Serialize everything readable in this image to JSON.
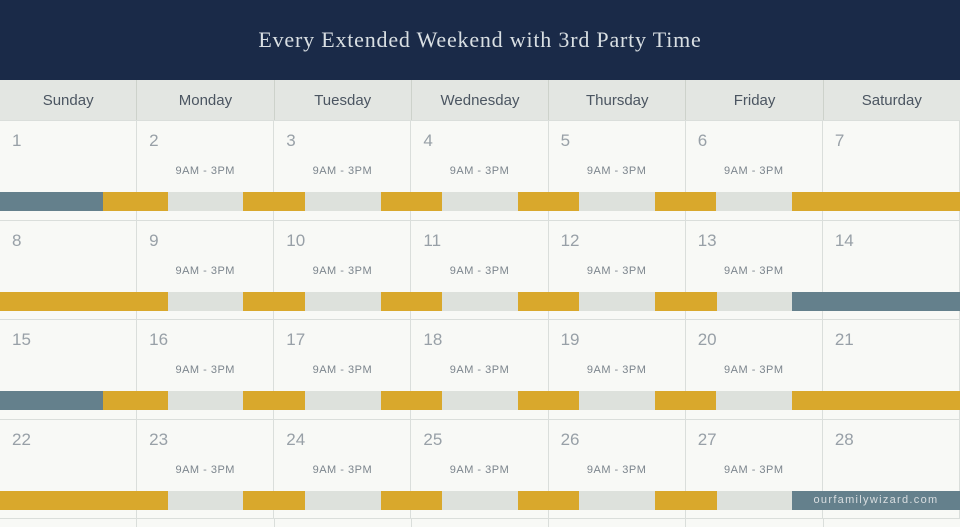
{
  "title": "Every Extended Weekend with 3rd Party Time",
  "watermark": "ourfamilywizard.com",
  "time_label": "9AM - 3PM",
  "day_headers": [
    "Sunday",
    "Monday",
    "Tuesday",
    "Wednesday",
    "Thursday",
    "Friday",
    "Saturday"
  ],
  "colors": {
    "navy": "#1a2a48",
    "gold": "#d9a82c",
    "blue": "#64808c",
    "slot": "#dde1dc",
    "cellBg": "#f8f9f6",
    "headerBg": "#e3e6e2",
    "border": "#dadedb",
    "dayText": "#4b5561",
    "dateText": "#98a0a7",
    "timeText": "#7c858d",
    "titleText": "#d9dfe3"
  },
  "legend_meaning": {
    "gold": "parent-gold-time",
    "blue": "parent-blue-extended-weekend",
    "gray": "third-party-time-9am-3pm"
  },
  "weeks": [
    {
      "days": [
        {
          "date": "1",
          "time": ""
        },
        {
          "date": "2",
          "time": "9AM - 3PM"
        },
        {
          "date": "3",
          "time": "9AM - 3PM"
        },
        {
          "date": "4",
          "time": "9AM - 3PM"
        },
        {
          "date": "5",
          "time": "9AM - 3PM"
        },
        {
          "date": "6",
          "time": "9AM - 3PM"
        },
        {
          "date": "7",
          "time": ""
        }
      ],
      "bar": [
        {
          "c": "blue",
          "w": 10.714
        },
        {
          "c": "gold",
          "w": 6.786
        },
        {
          "c": "gray",
          "w": 7.857
        },
        {
          "c": "gold",
          "w": 6.429
        },
        {
          "c": "gray",
          "w": 7.857
        },
        {
          "c": "gold",
          "w": 6.429
        },
        {
          "c": "gray",
          "w": 7.857
        },
        {
          "c": "gold",
          "w": 6.429
        },
        {
          "c": "gray",
          "w": 7.857
        },
        {
          "c": "gold",
          "w": 6.429
        },
        {
          "c": "gray",
          "w": 7.857
        },
        {
          "c": "gold",
          "w": 17.5
        }
      ],
      "watermark": false
    },
    {
      "days": [
        {
          "date": "8",
          "time": ""
        },
        {
          "date": "9",
          "time": "9AM - 3PM"
        },
        {
          "date": "10",
          "time": "9AM - 3PM"
        },
        {
          "date": "11",
          "time": "9AM - 3PM"
        },
        {
          "date": "12",
          "time": "9AM - 3PM"
        },
        {
          "date": "13",
          "time": "9AM - 3PM"
        },
        {
          "date": "14",
          "time": ""
        }
      ],
      "bar": [
        {
          "c": "gold",
          "w": 17.5
        },
        {
          "c": "gray",
          "w": 7.857
        },
        {
          "c": "gold",
          "w": 6.429
        },
        {
          "c": "gray",
          "w": 7.857
        },
        {
          "c": "gold",
          "w": 6.429
        },
        {
          "c": "gray",
          "w": 7.857
        },
        {
          "c": "gold",
          "w": 6.429
        },
        {
          "c": "gray",
          "w": 7.857
        },
        {
          "c": "gold",
          "w": 6.429
        },
        {
          "c": "gray",
          "w": 7.857
        },
        {
          "c": "blue",
          "w": 17.5
        }
      ],
      "watermark": false
    },
    {
      "days": [
        {
          "date": "15",
          "time": ""
        },
        {
          "date": "16",
          "time": "9AM - 3PM"
        },
        {
          "date": "17",
          "time": "9AM - 3PM"
        },
        {
          "date": "18",
          "time": "9AM - 3PM"
        },
        {
          "date": "19",
          "time": "9AM - 3PM"
        },
        {
          "date": "20",
          "time": "9AM - 3PM"
        },
        {
          "date": "21",
          "time": ""
        }
      ],
      "bar": [
        {
          "c": "blue",
          "w": 10.714
        },
        {
          "c": "gold",
          "w": 6.786
        },
        {
          "c": "gray",
          "w": 7.857
        },
        {
          "c": "gold",
          "w": 6.429
        },
        {
          "c": "gray",
          "w": 7.857
        },
        {
          "c": "gold",
          "w": 6.429
        },
        {
          "c": "gray",
          "w": 7.857
        },
        {
          "c": "gold",
          "w": 6.429
        },
        {
          "c": "gray",
          "w": 7.857
        },
        {
          "c": "gold",
          "w": 6.429
        },
        {
          "c": "gray",
          "w": 7.857
        },
        {
          "c": "gold",
          "w": 17.5
        }
      ],
      "watermark": false
    },
    {
      "days": [
        {
          "date": "22",
          "time": ""
        },
        {
          "date": "23",
          "time": "9AM - 3PM"
        },
        {
          "date": "24",
          "time": "9AM - 3PM"
        },
        {
          "date": "25",
          "time": "9AM - 3PM"
        },
        {
          "date": "26",
          "time": "9AM - 3PM"
        },
        {
          "date": "27",
          "time": "9AM - 3PM"
        },
        {
          "date": "28",
          "time": ""
        }
      ],
      "bar": [
        {
          "c": "gold",
          "w": 17.5
        },
        {
          "c": "gray",
          "w": 7.857
        },
        {
          "c": "gold",
          "w": 6.429
        },
        {
          "c": "gray",
          "w": 7.857
        },
        {
          "c": "gold",
          "w": 6.429
        },
        {
          "c": "gray",
          "w": 7.857
        },
        {
          "c": "gold",
          "w": 6.429
        },
        {
          "c": "gray",
          "w": 7.857
        },
        {
          "c": "gold",
          "w": 6.429
        },
        {
          "c": "gray",
          "w": 7.857
        },
        {
          "c": "blue",
          "w": 17.5
        }
      ],
      "watermark": true
    }
  ]
}
